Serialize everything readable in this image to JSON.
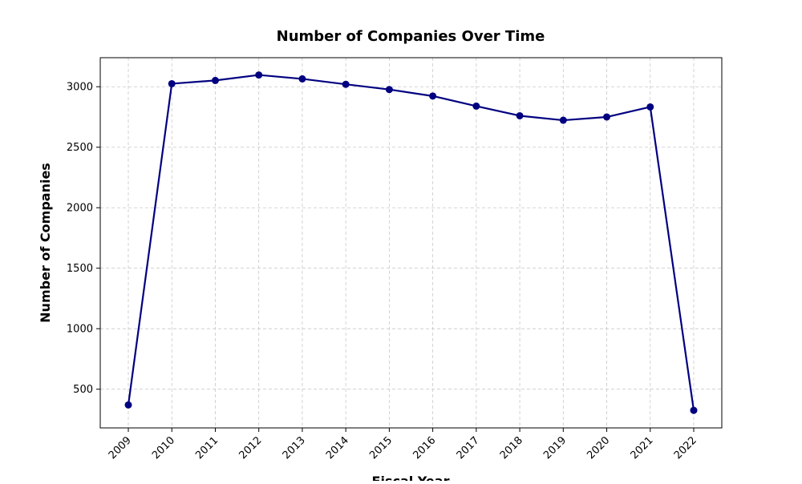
{
  "chart_data": {
    "type": "line",
    "title": "Number of Companies Over Time",
    "xlabel": "Fiscal Year",
    "ylabel": "Number of Companies",
    "x": [
      "2009",
      "2010",
      "2011",
      "2012",
      "2013",
      "2014",
      "2015",
      "2016",
      "2017",
      "2018",
      "2019",
      "2020",
      "2021",
      "2022"
    ],
    "series": [
      {
        "values": [
          370,
          3025,
          3052,
          3097,
          3065,
          3020,
          2977,
          2923,
          2840,
          2760,
          2723,
          2750,
          2833,
          325
        ],
        "color": "#000080"
      }
    ],
    "yticks": [
      500,
      1000,
      1500,
      2000,
      2500,
      3000
    ],
    "ylim": [
      180,
      3240
    ],
    "grid": true,
    "legend": "none"
  }
}
